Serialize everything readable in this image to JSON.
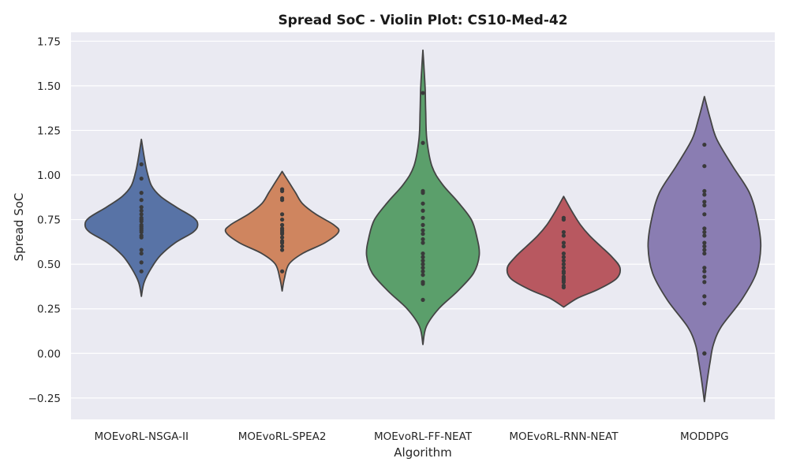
{
  "chart_data": {
    "type": "violin",
    "title": "Spread SoC - Violin Plot: CS10-Med-42",
    "xlabel": "Algorithm",
    "ylabel": "Spread SoC",
    "ylim": [
      -0.37,
      1.8
    ],
    "yticks": [
      "−0.25",
      "0.00",
      "0.25",
      "0.50",
      "0.75",
      "1.00",
      "1.25",
      "1.50",
      "1.75"
    ],
    "ytick_values": [
      -0.25,
      0,
      0.25,
      0.5,
      0.75,
      1.0,
      1.25,
      1.5,
      1.75
    ],
    "grid": true,
    "background": "#eaeaf2",
    "categories": [
      "MOEvoRL-NSGA-II",
      "MOEvoRL-SPEA2",
      "MOEvoRL-FF-NEAT",
      "MOEvoRL-RNN-NEAT",
      "MODDPG"
    ],
    "series": [
      {
        "color": "#5873a6",
        "points": [
          1.06,
          0.98,
          0.9,
          0.86,
          0.82,
          0.8,
          0.78,
          0.76,
          0.75,
          0.74,
          0.72,
          0.71,
          0.7,
          0.69,
          0.68,
          0.66,
          0.65,
          0.58,
          0.56,
          0.51,
          0.46
        ],
        "kde": [
          [
            0.32,
            0.0
          ],
          [
            0.4,
            0.05
          ],
          [
            0.48,
            0.18
          ],
          [
            0.55,
            0.34
          ],
          [
            0.62,
            0.6
          ],
          [
            0.68,
            0.92
          ],
          [
            0.72,
            1.0
          ],
          [
            0.76,
            0.93
          ],
          [
            0.82,
            0.62
          ],
          [
            0.88,
            0.34
          ],
          [
            0.94,
            0.18
          ],
          [
            1.02,
            0.1
          ],
          [
            1.1,
            0.05
          ],
          [
            1.2,
            0.0
          ]
        ]
      },
      {
        "color": "#cf855f",
        "points": [
          0.92,
          0.91,
          0.87,
          0.86,
          0.78,
          0.75,
          0.72,
          0.7,
          0.69,
          0.68,
          0.67,
          0.65,
          0.63,
          0.62,
          0.6,
          0.58,
          0.46
        ],
        "kde": [
          [
            0.35,
            0.0
          ],
          [
            0.42,
            0.04
          ],
          [
            0.5,
            0.12
          ],
          [
            0.56,
            0.36
          ],
          [
            0.62,
            0.76
          ],
          [
            0.68,
            1.0
          ],
          [
            0.72,
            0.92
          ],
          [
            0.78,
            0.6
          ],
          [
            0.84,
            0.36
          ],
          [
            0.9,
            0.24
          ],
          [
            0.95,
            0.14
          ],
          [
            1.02,
            0.0
          ]
        ]
      },
      {
        "color": "#5b9f6b",
        "points": [
          1.46,
          1.18,
          0.91,
          0.9,
          0.84,
          0.8,
          0.76,
          0.72,
          0.69,
          0.67,
          0.64,
          0.62,
          0.56,
          0.54,
          0.52,
          0.5,
          0.48,
          0.46,
          0.44,
          0.4,
          0.39,
          0.3
        ],
        "kde": [
          [
            0.05,
            0.0
          ],
          [
            0.15,
            0.06
          ],
          [
            0.25,
            0.28
          ],
          [
            0.35,
            0.62
          ],
          [
            0.45,
            0.9
          ],
          [
            0.55,
            1.0
          ],
          [
            0.65,
            0.96
          ],
          [
            0.75,
            0.86
          ],
          [
            0.85,
            0.62
          ],
          [
            0.95,
            0.34
          ],
          [
            1.05,
            0.16
          ],
          [
            1.2,
            0.07
          ],
          [
            1.35,
            0.05
          ],
          [
            1.48,
            0.04
          ],
          [
            1.6,
            0.02
          ],
          [
            1.7,
            0.0
          ]
        ]
      },
      {
        "color": "#b85860",
        "points": [
          0.76,
          0.75,
          0.68,
          0.66,
          0.62,
          0.6,
          0.56,
          0.54,
          0.52,
          0.5,
          0.48,
          0.46,
          0.45,
          0.43,
          0.42,
          0.41,
          0.4,
          0.38,
          0.37
        ],
        "kde": [
          [
            0.26,
            0.0
          ],
          [
            0.31,
            0.25
          ],
          [
            0.36,
            0.62
          ],
          [
            0.42,
            0.94
          ],
          [
            0.48,
            1.0
          ],
          [
            0.54,
            0.86
          ],
          [
            0.6,
            0.66
          ],
          [
            0.66,
            0.46
          ],
          [
            0.72,
            0.3
          ],
          [
            0.8,
            0.14
          ],
          [
            0.88,
            0.0
          ]
        ]
      },
      {
        "color": "#8a7db2",
        "points": [
          1.17,
          1.05,
          0.91,
          0.89,
          0.85,
          0.83,
          0.78,
          0.7,
          0.68,
          0.66,
          0.62,
          0.6,
          0.58,
          0.56,
          0.48,
          0.46,
          0.43,
          0.4,
          0.32,
          0.28,
          0.0,
          0.0
        ],
        "kde": [
          [
            -0.27,
            0.0
          ],
          [
            -0.15,
            0.05
          ],
          [
            -0.05,
            0.1
          ],
          [
            0.05,
            0.16
          ],
          [
            0.15,
            0.3
          ],
          [
            0.3,
            0.66
          ],
          [
            0.45,
            0.92
          ],
          [
            0.6,
            1.0
          ],
          [
            0.75,
            0.94
          ],
          [
            0.9,
            0.8
          ],
          [
            1.05,
            0.5
          ],
          [
            1.2,
            0.22
          ],
          [
            1.32,
            0.1
          ],
          [
            1.44,
            0.0
          ]
        ]
      }
    ]
  }
}
